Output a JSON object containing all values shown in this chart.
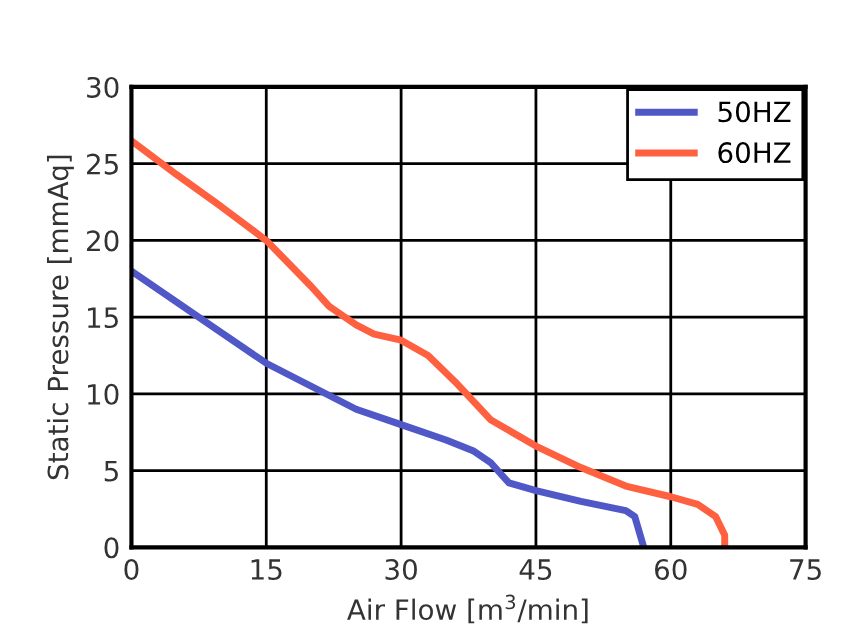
{
  "chart_data": {
    "type": "line",
    "xlabel": "Air Flow [m$^{3}$/min]",
    "ylabel": "Static Pressure [mmAq]",
    "xlim": [
      0,
      75
    ],
    "xticks": [
      0,
      15,
      30,
      45,
      60,
      75
    ],
    "ylim": [
      0,
      30
    ],
    "yticks": [
      0,
      5,
      10,
      15,
      20,
      25,
      30
    ],
    "grid": true,
    "legend": "top right",
    "series": [
      {
        "name": "50HZ",
        "color": "#5058c8",
        "x": [
          0,
          5,
          10,
          15,
          20,
          25,
          30,
          35,
          38,
          40,
          42,
          45,
          50,
          55,
          56,
          57
        ],
        "values": [
          18,
          16,
          14,
          12,
          10.5,
          9,
          8,
          7,
          6.3,
          5.5,
          4.2,
          3.7,
          3,
          2.4,
          2,
          0
        ]
      },
      {
        "name": "60HZ",
        "color": "#ff6040",
        "x": [
          0,
          5,
          10,
          15,
          20,
          22,
          25,
          27,
          30,
          33,
          36,
          40,
          45,
          50,
          55,
          60,
          63,
          65,
          66,
          66
        ],
        "values": [
          26.5,
          24.3,
          22.2,
          20,
          17,
          15.7,
          14.5,
          13.9,
          13.5,
          12.5,
          10.8,
          8.3,
          6.6,
          5.2,
          4,
          3.3,
          2.8,
          2,
          0.8,
          0
        ]
      }
    ]
  }
}
